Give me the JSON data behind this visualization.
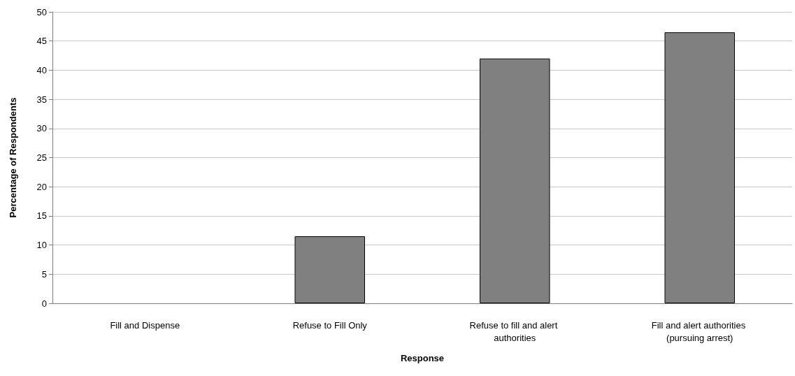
{
  "chart_data": {
    "type": "bar",
    "xlabel": "Response",
    "ylabel": "Percentage of Respondents",
    "categories": [
      "Fill and Dispense",
      "Refuse to Fill Only",
      "Refuse to fill and alert authorities",
      "Fill and alert authorities (pursuing arrest)"
    ],
    "values": [
      0,
      11.5,
      42,
      46.5
    ],
    "color": "#808080",
    "ylim": [
      0,
      50
    ],
    "yticks": [
      0,
      5,
      10,
      15,
      20,
      25,
      30,
      35,
      40,
      45,
      50
    ],
    "grid": "y"
  }
}
